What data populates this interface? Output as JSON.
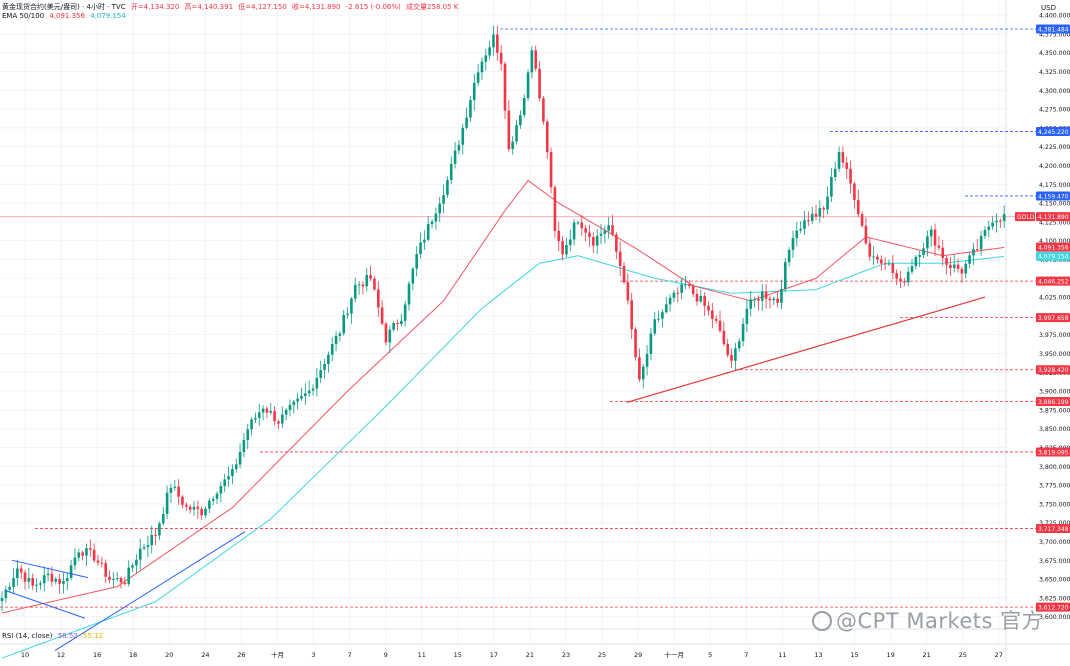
{
  "header": {
    "symbol_line": "黄金现货合约(美元/盎司) · 4小时 · TVC",
    "open": "开=4,134.320",
    "high": "高=4,140.391",
    "low": "低=4,127.150",
    "close": "收=4,131.890",
    "change": "-2.615 (-0.06%)",
    "volume": "成交量258.05 K",
    "ema_label": "EMA 50/100",
    "ema50_value": "4,091.356",
    "ema100_value": "4,079.154",
    "currency": "USD"
  },
  "rsi": {
    "label": "RSI (14, close)",
    "value1": "58.52",
    "value2": "55.12"
  },
  "watermark": "@CPT Markets 官方",
  "colors": {
    "up": "#089981",
    "down": "#f23645",
    "ema50": "#f23645",
    "ema100": "#3fd6e0",
    "trend_blue": "#2962ff",
    "trend_red": "#e53935",
    "grid": "#f0f3fa"
  },
  "chart_data": {
    "type": "candlestick",
    "title": "黄金现货合约(美元/盎司) · 4小时 · TVC",
    "y_axis": {
      "unit": "USD",
      "range": [
        3585,
        4420
      ],
      "ticks": [
        "3,600.000",
        "3,625.000",
        "3,650.000",
        "3,675.000",
        "3,700.000",
        "3,725.000",
        "3,750.000",
        "3,775.000",
        "3,800.000",
        "3,825.000",
        "3,850.000",
        "3,875.000",
        "3,900.000",
        "3,925.000",
        "3,950.000",
        "3,975.000",
        "4,000.000",
        "4,025.000",
        "4,050.000",
        "4,075.000",
        "4,100.000",
        "4,125.000",
        "4,150.000",
        "4,175.000",
        "4,200.000",
        "4,225.000",
        "4,250.000",
        "4,275.000",
        "4,300.000",
        "4,325.000",
        "4,350.000",
        "4,375.000",
        "4,400.000"
      ]
    },
    "x_axis": {
      "ticks": [
        "10",
        "12",
        "16",
        "18",
        "20",
        "24",
        "26",
        "十月",
        "3",
        "7",
        "9",
        "11",
        "15",
        "17",
        "21",
        "23",
        "25",
        "29",
        "十一月",
        "5",
        "7",
        "11",
        "13",
        "15",
        "19",
        "21",
        "25",
        "27"
      ]
    },
    "price_line": {
      "label": "GOLD",
      "value": 4131.89,
      "text": "4,131.890"
    },
    "level_labels": [
      {
        "value": 4381.484,
        "text": "4,381.484",
        "color": "#2962ff"
      },
      {
        "value": 4245.22,
        "text": "4,245.220",
        "color": "#2962ff"
      },
      {
        "value": 4159.47,
        "text": "4,159.470",
        "color": "#2962ff"
      },
      {
        "value": 4091.356,
        "text": "4,091.356",
        "color": "#f23645"
      },
      {
        "value": 4079.154,
        "text": "4,079.154",
        "color": "#3fd6e0"
      },
      {
        "value": 4046.252,
        "text": "4,046.252",
        "color": "#f23645"
      },
      {
        "value": 3997.658,
        "text": "3,997.658",
        "color": "#f23645"
      },
      {
        "value": 3928.42,
        "text": "3,928.420",
        "color": "#f23645"
      },
      {
        "value": 3886.199,
        "text": "3,886.199",
        "color": "#f23645"
      },
      {
        "value": 3819.095,
        "text": "3,819.095",
        "color": "#f23645"
      },
      {
        "value": 3717.348,
        "text": "3,717.348",
        "color": "#f23645"
      },
      {
        "value": 3612.72,
        "text": "3,612.720",
        "color": "#f23645"
      }
    ],
    "anchors": [
      [
        0,
        3625
      ],
      [
        4,
        3665
      ],
      [
        8,
        3640
      ],
      [
        12,
        3655
      ],
      [
        16,
        3645
      ],
      [
        20,
        3690
      ],
      [
        24,
        3680
      ],
      [
        28,
        3650
      ],
      [
        32,
        3648
      ],
      [
        36,
        3690
      ],
      [
        40,
        3710
      ],
      [
        44,
        3775
      ],
      [
        48,
        3745
      ],
      [
        52,
        3740
      ],
      [
        56,
        3770
      ],
      [
        60,
        3790
      ],
      [
        64,
        3850
      ],
      [
        68,
        3880
      ],
      [
        72,
        3860
      ],
      [
        76,
        3880
      ],
      [
        80,
        3900
      ],
      [
        84,
        3940
      ],
      [
        88,
        3980
      ],
      [
        92,
        4040
      ],
      [
        96,
        4050
      ],
      [
        100,
        3970
      ],
      [
        104,
        4000
      ],
      [
        108,
        4080
      ],
      [
        112,
        4130
      ],
      [
        116,
        4180
      ],
      [
        120,
        4250
      ],
      [
        124,
        4330
      ],
      [
        128,
        4370
      ],
      [
        130,
        4340
      ],
      [
        132,
        4220
      ],
      [
        136,
        4290
      ],
      [
        138,
        4360
      ],
      [
        142,
        4220
      ],
      [
        144,
        4110
      ],
      [
        146,
        4085
      ],
      [
        150,
        4130
      ],
      [
        154,
        4100
      ],
      [
        158,
        4120
      ],
      [
        162,
        4050
      ],
      [
        166,
        3910
      ],
      [
        170,
        3990
      ],
      [
        174,
        4020
      ],
      [
        178,
        4040
      ],
      [
        182,
        4020
      ],
      [
        186,
        3990
      ],
      [
        190,
        3935
      ],
      [
        194,
        4010
      ],
      [
        198,
        4030
      ],
      [
        202,
        4020
      ],
      [
        206,
        4110
      ],
      [
        210,
        4130
      ],
      [
        214,
        4140
      ],
      [
        218,
        4220
      ],
      [
        222,
        4160
      ],
      [
        224,
        4120
      ],
      [
        226,
        4080
      ],
      [
        230,
        4075
      ],
      [
        234,
        4040
      ],
      [
        238,
        4080
      ],
      [
        242,
        4110
      ],
      [
        246,
        4070
      ],
      [
        250,
        4060
      ],
      [
        254,
        4090
      ],
      [
        258,
        4130
      ],
      [
        261,
        4132
      ]
    ],
    "ema50": [
      [
        0,
        3605
      ],
      [
        30,
        3640
      ],
      [
        60,
        3745
      ],
      [
        90,
        3900
      ],
      [
        115,
        4020
      ],
      [
        131,
        4140
      ],
      [
        137,
        4180
      ],
      [
        145,
        4150
      ],
      [
        165,
        4090
      ],
      [
        180,
        4040
      ],
      [
        195,
        4020
      ],
      [
        212,
        4050
      ],
      [
        225,
        4105
      ],
      [
        245,
        4080
      ],
      [
        261,
        4091
      ]
    ],
    "ema100": [
      [
        0,
        3545
      ],
      [
        40,
        3620
      ],
      [
        70,
        3730
      ],
      [
        100,
        3880
      ],
      [
        125,
        4010
      ],
      [
        140,
        4070
      ],
      [
        150,
        4080
      ],
      [
        170,
        4050
      ],
      [
        190,
        4030
      ],
      [
        212,
        4035
      ],
      [
        230,
        4070
      ],
      [
        245,
        4070
      ],
      [
        261,
        4079
      ]
    ],
    "rsi_values": [
      58.52,
      55.12
    ]
  }
}
